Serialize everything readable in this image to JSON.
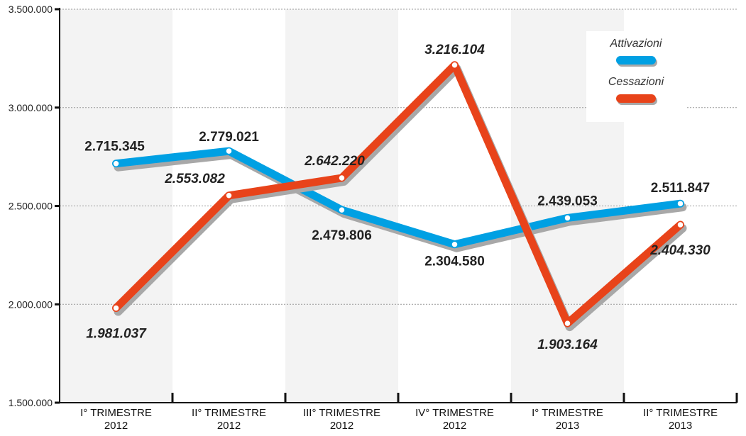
{
  "chart_data": {
    "type": "line",
    "categories": [
      [
        "I° TRIMESTRE",
        "2012"
      ],
      [
        "II° TRIMESTRE",
        "2012"
      ],
      [
        "III° TRIMESTRE",
        "2012"
      ],
      [
        "IV° TRIMESTRE",
        "2012"
      ],
      [
        "I° TRIMESTRE",
        "2013"
      ],
      [
        "II° TRIMESTRE",
        "2013"
      ]
    ],
    "series": [
      {
        "name": "Attivazioni",
        "color": "#00a0e3",
        "values": [
          2715345,
          2779021,
          2479806,
          2304580,
          2439053,
          2511847
        ],
        "labels": [
          "2.715.345",
          "2.779.021",
          "2.479.806",
          "2.304.580",
          "2.439.053",
          "2.511.847"
        ]
      },
      {
        "name": "Cessazioni",
        "color": "#e8431a",
        "values": [
          1981037,
          2553082,
          2642220,
          3216104,
          1903164,
          2404330
        ],
        "labels": [
          "1.981.037",
          "2.553.082",
          "2.642.220",
          "3.216.104",
          "1.903.164",
          "2.404.330"
        ]
      }
    ],
    "yticks": [
      {
        "value": 1500000,
        "label": "1.500.000"
      },
      {
        "value": 2000000,
        "label": "2.000.000"
      },
      {
        "value": 2500000,
        "label": "2.500.000"
      },
      {
        "value": 3000000,
        "label": "3.000.000"
      },
      {
        "value": 3500000,
        "label": "3.500.000"
      }
    ],
    "ylim": [
      1500000,
      3500000
    ],
    "title": "",
    "xlabel": "",
    "ylabel": "",
    "grid": true,
    "legend": "top-right"
  }
}
